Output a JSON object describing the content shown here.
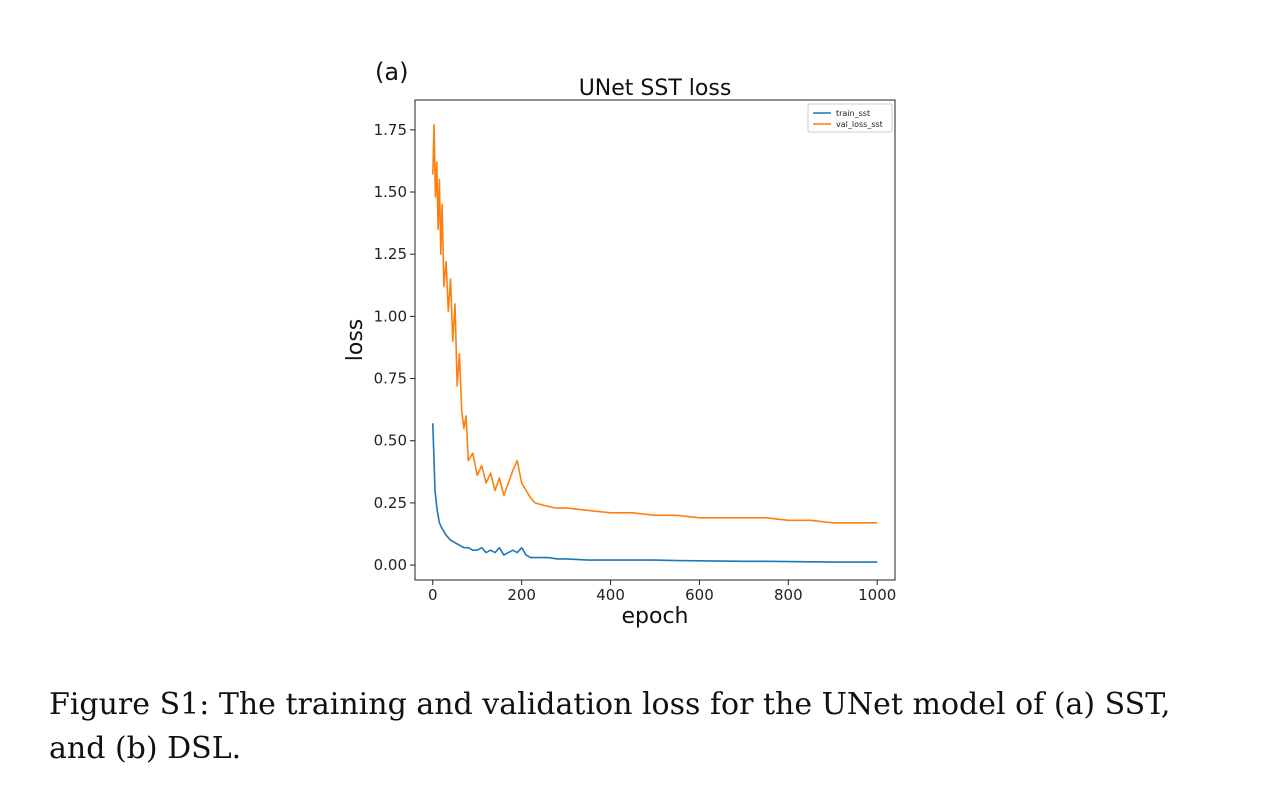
{
  "panel_label": "(a)",
  "caption": "Figure S1: The training and validation loss for the UNet model of (a) SST, and (b) DSL.",
  "chart_data": {
    "type": "line",
    "title": "UNet SST loss",
    "xlabel": "epoch",
    "ylabel": "loss",
    "xlim": [
      -40,
      1040
    ],
    "ylim": [
      -0.06,
      1.87
    ],
    "xticks": [
      0,
      200,
      400,
      600,
      800,
      1000
    ],
    "yticks": [
      0.0,
      0.25,
      0.5,
      0.75,
      1.0,
      1.25,
      1.5,
      1.75
    ],
    "xtick_labels": [
      "0",
      "200",
      "400",
      "600",
      "800",
      "1000"
    ],
    "ytick_labels": [
      "0.00",
      "0.25",
      "0.50",
      "0.75",
      "1.00",
      "1.25",
      "1.50",
      "1.75"
    ],
    "grid": false,
    "legend_position": "top-right",
    "series": [
      {
        "name": "train_sst",
        "color": "#1f77b4",
        "x": [
          0,
          5,
          10,
          15,
          20,
          30,
          40,
          50,
          60,
          70,
          80,
          90,
          100,
          110,
          120,
          130,
          140,
          150,
          160,
          170,
          180,
          190,
          200,
          210,
          220,
          240,
          260,
          280,
          300,
          350,
          400,
          450,
          500,
          550,
          600,
          650,
          700,
          750,
          800,
          850,
          900,
          950,
          1000
        ],
        "values": [
          0.57,
          0.3,
          0.22,
          0.17,
          0.15,
          0.12,
          0.1,
          0.09,
          0.08,
          0.07,
          0.07,
          0.06,
          0.06,
          0.07,
          0.05,
          0.06,
          0.05,
          0.07,
          0.04,
          0.05,
          0.06,
          0.05,
          0.07,
          0.04,
          0.03,
          0.03,
          0.03,
          0.025,
          0.025,
          0.02,
          0.02,
          0.02,
          0.02,
          0.018,
          0.017,
          0.016,
          0.015,
          0.015,
          0.014,
          0.013,
          0.012,
          0.012,
          0.012
        ]
      },
      {
        "name": "val_loss_sst",
        "color": "#ff7f0e",
        "x": [
          0,
          3,
          6,
          9,
          12,
          15,
          18,
          21,
          25,
          30,
          35,
          40,
          45,
          50,
          55,
          60,
          65,
          70,
          75,
          80,
          90,
          100,
          110,
          120,
          130,
          140,
          150,
          160,
          170,
          180,
          190,
          200,
          210,
          220,
          230,
          250,
          275,
          300,
          350,
          400,
          450,
          500,
          550,
          600,
          650,
          700,
          750,
          800,
          850,
          900,
          950,
          1000
        ],
        "values": [
          1.57,
          1.77,
          1.48,
          1.62,
          1.35,
          1.55,
          1.25,
          1.45,
          1.12,
          1.22,
          1.02,
          1.15,
          0.9,
          1.05,
          0.72,
          0.85,
          0.62,
          0.55,
          0.6,
          0.42,
          0.45,
          0.36,
          0.4,
          0.33,
          0.37,
          0.3,
          0.35,
          0.28,
          0.33,
          0.38,
          0.42,
          0.33,
          0.3,
          0.27,
          0.25,
          0.24,
          0.23,
          0.23,
          0.22,
          0.21,
          0.21,
          0.2,
          0.2,
          0.19,
          0.19,
          0.19,
          0.19,
          0.18,
          0.18,
          0.17,
          0.17,
          0.17
        ]
      }
    ]
  }
}
